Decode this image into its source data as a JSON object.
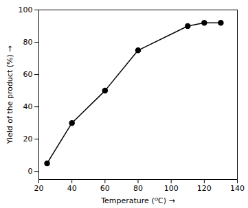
{
  "chart_data": {
    "type": "line",
    "x": [
      25,
      40,
      60,
      80,
      110,
      120,
      130
    ],
    "values": [
      5,
      30,
      50,
      75,
      90,
      92,
      92
    ],
    "color": "#000000",
    "marker": "circle",
    "xlabel": "Temperature (ᴼC)",
    "ylabel": "Yield of the product (%)",
    "xlim": [
      20,
      140
    ],
    "ylim": [
      -5,
      100
    ],
    "xticks": [
      20,
      40,
      60,
      80,
      100,
      120,
      140
    ],
    "yticks": [
      0,
      20,
      40,
      60,
      80,
      100
    ],
    "grid": false
  }
}
